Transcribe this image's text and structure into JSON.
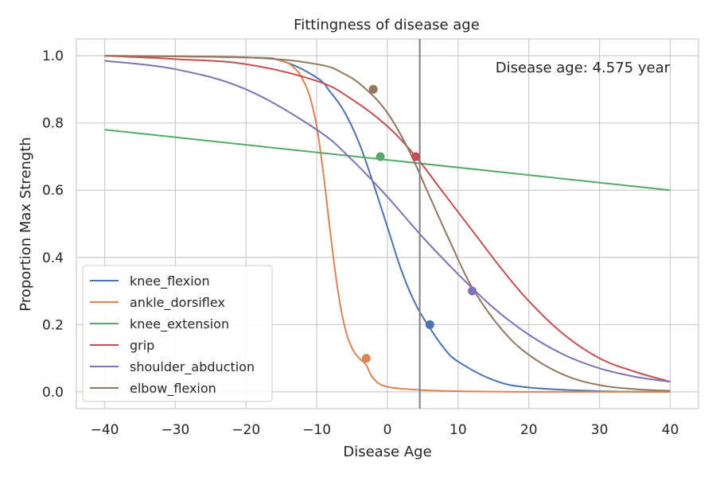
{
  "chart_data": {
    "type": "line",
    "title": "Fittingness of disease age",
    "xlabel": "Disease Age",
    "ylabel": "Proportion Max Strength",
    "xlim": [
      -44,
      44
    ],
    "ylim": [
      -0.05,
      1.05
    ],
    "xticks": [
      -40,
      -30,
      -20,
      -10,
      0,
      10,
      20,
      30,
      40
    ],
    "xtick_labels": [
      "−40",
      "−30",
      "−20",
      "−10",
      "0",
      "10",
      "20",
      "30",
      "40"
    ],
    "yticks": [
      0.0,
      0.2,
      0.4,
      0.6,
      0.8,
      1.0
    ],
    "ytick_labels": [
      "0.0",
      "0.2",
      "0.4",
      "0.6",
      "0.8",
      "1.0"
    ],
    "grid": true,
    "legend_position": "lower-left",
    "vertical_line": {
      "x": 4.575,
      "color": "#7f7f7f"
    },
    "annotation": "Disease age:  4.575 year",
    "series": [
      {
        "name": "knee_flexion",
        "color": "#4c72b0",
        "x": [
          -40,
          -20,
          -15,
          -10,
          -8,
          -6,
          -4,
          -2,
          0,
          2,
          4,
          6,
          8,
          10,
          15,
          20,
          30,
          40
        ],
        "y": [
          1.0,
          0.995,
          0.985,
          0.935,
          0.89,
          0.83,
          0.74,
          0.62,
          0.49,
          0.36,
          0.26,
          0.19,
          0.13,
          0.09,
          0.035,
          0.013,
          0.002,
          0.0
        ],
        "point": [
          6,
          0.2
        ]
      },
      {
        "name": "ankle_dorsiflex",
        "color": "#dd8452",
        "x": [
          -40,
          -20,
          -15,
          -13,
          -12,
          -11,
          -10,
          -9,
          -8,
          -7,
          -6,
          -5,
          -4,
          -3,
          -2,
          0,
          5,
          10,
          20,
          40
        ],
        "y": [
          1.0,
          0.995,
          0.985,
          0.96,
          0.93,
          0.88,
          0.79,
          0.64,
          0.46,
          0.3,
          0.19,
          0.13,
          0.1,
          0.08,
          0.04,
          0.015,
          0.005,
          0.002,
          0.0,
          0.0
        ],
        "point": [
          -3,
          0.1
        ]
      },
      {
        "name": "knee_extension",
        "color": "#55a868",
        "x": [
          -40,
          40
        ],
        "y": [
          0.78,
          0.6
        ],
        "point": [
          -1,
          0.7
        ]
      },
      {
        "name": "grip",
        "color": "#c44e52",
        "x": [
          -40,
          -30,
          -20,
          -10,
          -5,
          0,
          4,
          8,
          12,
          16,
          20,
          25,
          30,
          35,
          40
        ],
        "y": [
          1.0,
          0.99,
          0.975,
          0.925,
          0.87,
          0.79,
          0.7,
          0.59,
          0.48,
          0.37,
          0.27,
          0.17,
          0.1,
          0.06,
          0.03
        ],
        "point": [
          4,
          0.7
        ]
      },
      {
        "name": "shoulder_abduction",
        "color": "#8172b3",
        "x": [
          -40,
          -30,
          -20,
          -10,
          -5,
          0,
          5,
          10,
          15,
          20,
          25,
          30,
          35,
          40
        ],
        "y": [
          0.985,
          0.96,
          0.9,
          0.78,
          0.69,
          0.58,
          0.46,
          0.35,
          0.25,
          0.17,
          0.11,
          0.07,
          0.045,
          0.03
        ],
        "point": [
          12,
          0.3
        ]
      },
      {
        "name": "elbow_flexion",
        "color": "#937860",
        "x": [
          -40,
          -20,
          -10,
          -6,
          -3,
          0,
          3,
          6,
          9,
          12,
          16,
          20,
          25,
          30,
          35,
          40
        ],
        "y": [
          1.0,
          0.995,
          0.975,
          0.945,
          0.9,
          0.83,
          0.72,
          0.58,
          0.44,
          0.31,
          0.19,
          0.11,
          0.05,
          0.02,
          0.008,
          0.003
        ],
        "point": [
          -2,
          0.9
        ]
      }
    ]
  }
}
